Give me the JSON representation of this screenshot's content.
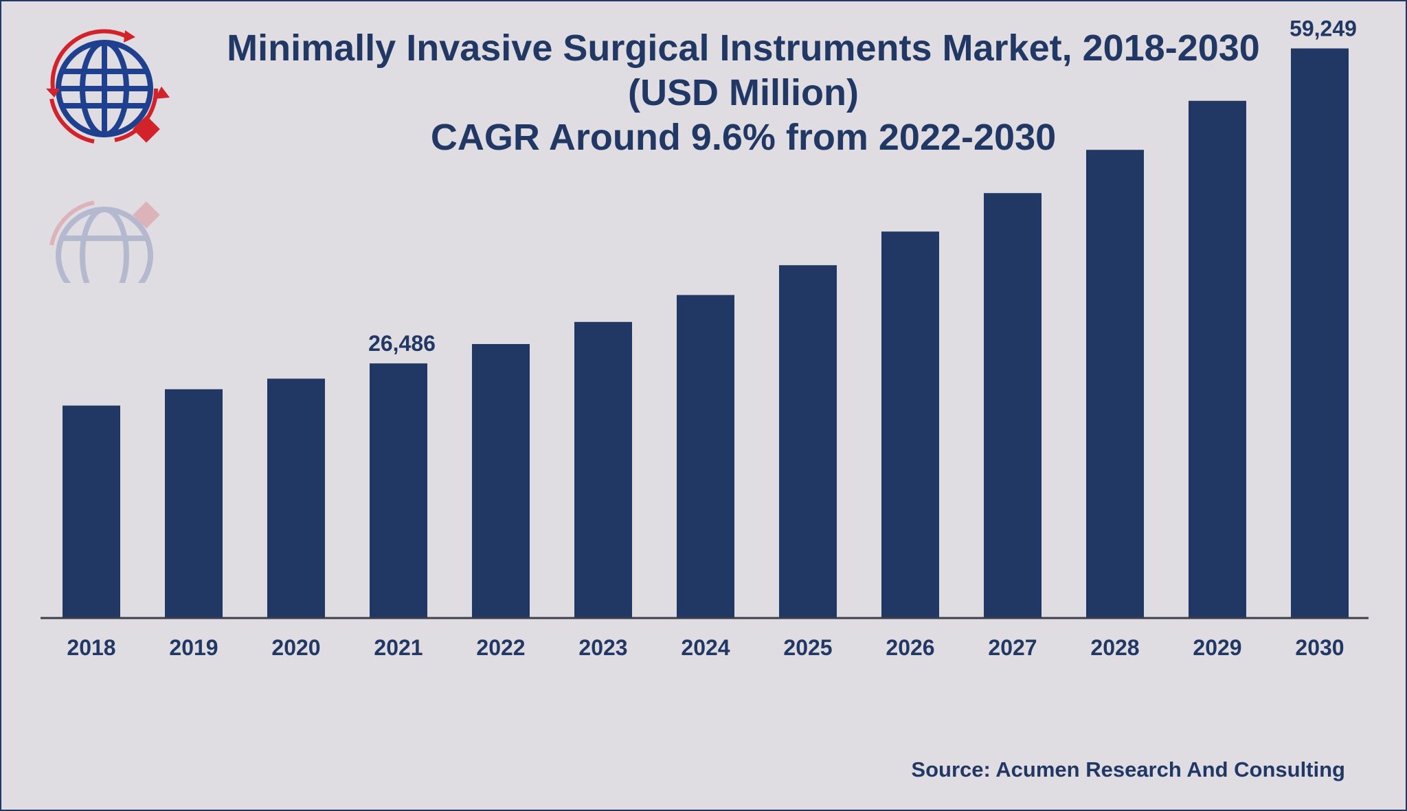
{
  "title": {
    "line1": "Minimally Invasive Surgical Instruments Market, 2018-2030",
    "line2": "(USD Million)",
    "line3": "CAGR Around 9.6% from 2022-2030"
  },
  "source": "Source: Acumen Research And Consulting",
  "colors": {
    "bar": "#213764",
    "text": "#213764",
    "axis": "#3c3f4a",
    "background": "#e0dde2",
    "logo_blue": "#1f3f8f",
    "logo_red": "#d2232a"
  },
  "logo": {
    "icon": "globe-arrows-icon"
  },
  "chart_data": {
    "type": "bar",
    "categories": [
      "2018",
      "2019",
      "2020",
      "2021",
      "2022",
      "2023",
      "2024",
      "2025",
      "2026",
      "2027",
      "2028",
      "2029",
      "2030"
    ],
    "values": [
      22100,
      23800,
      24900,
      26486,
      28500,
      30800,
      33600,
      36700,
      40200,
      44200,
      48700,
      53800,
      59249
    ],
    "data_labels": [
      {
        "index": 3,
        "text": "26,486"
      },
      {
        "index": 12,
        "text": "59,249"
      }
    ],
    "ylim": [
      0,
      62000
    ],
    "grid": false,
    "legend": false
  }
}
